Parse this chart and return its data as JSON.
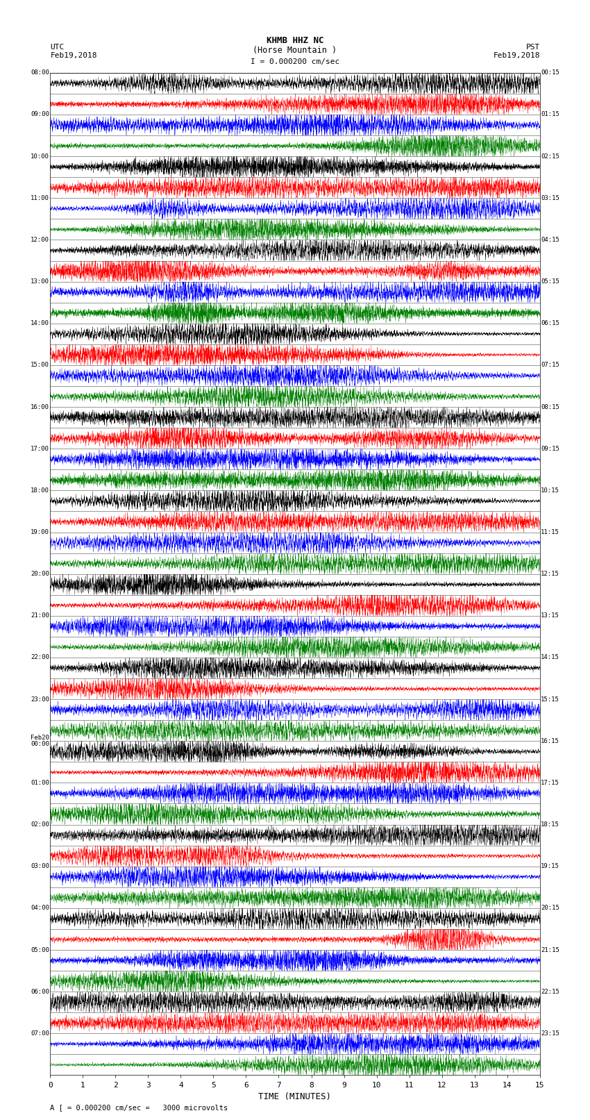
{
  "title_line1": "KHMB HHZ NC",
  "title_line2": "(Horse Mountain )",
  "scale_label": "I = 0.000200 cm/sec",
  "left_label": "UTC",
  "left_date": "Feb19,2018",
  "right_label": "PST",
  "right_date": "Feb19,2018",
  "utc_times": [
    "08:00",
    "09:00",
    "10:00",
    "11:00",
    "12:00",
    "13:00",
    "14:00",
    "15:00",
    "16:00",
    "17:00",
    "18:00",
    "19:00",
    "20:00",
    "21:00",
    "22:00",
    "23:00",
    "Feb20\n00:00",
    "01:00",
    "02:00",
    "03:00",
    "04:00",
    "05:00",
    "06:00",
    "07:00"
  ],
  "pst_times": [
    "00:15",
    "01:15",
    "02:15",
    "03:15",
    "04:15",
    "05:15",
    "06:15",
    "07:15",
    "08:15",
    "09:15",
    "10:15",
    "11:15",
    "12:15",
    "13:15",
    "14:15",
    "15:15",
    "16:15",
    "17:15",
    "18:15",
    "19:15",
    "20:15",
    "21:15",
    "22:15",
    "23:15"
  ],
  "n_rows": 48,
  "colors_cycle": [
    "black",
    "red",
    "blue",
    "green"
  ],
  "xlabel": "TIME (MINUTES)",
  "xmin": 0,
  "xmax": 15,
  "xticks": [
    0,
    1,
    2,
    3,
    4,
    5,
    6,
    7,
    8,
    9,
    10,
    11,
    12,
    13,
    14,
    15
  ],
  "footer_text": "A [ = 0.000200 cm/sec =   3000 microvolts",
  "background": "white",
  "fig_width": 8.5,
  "fig_height": 16.13,
  "dpi": 100
}
